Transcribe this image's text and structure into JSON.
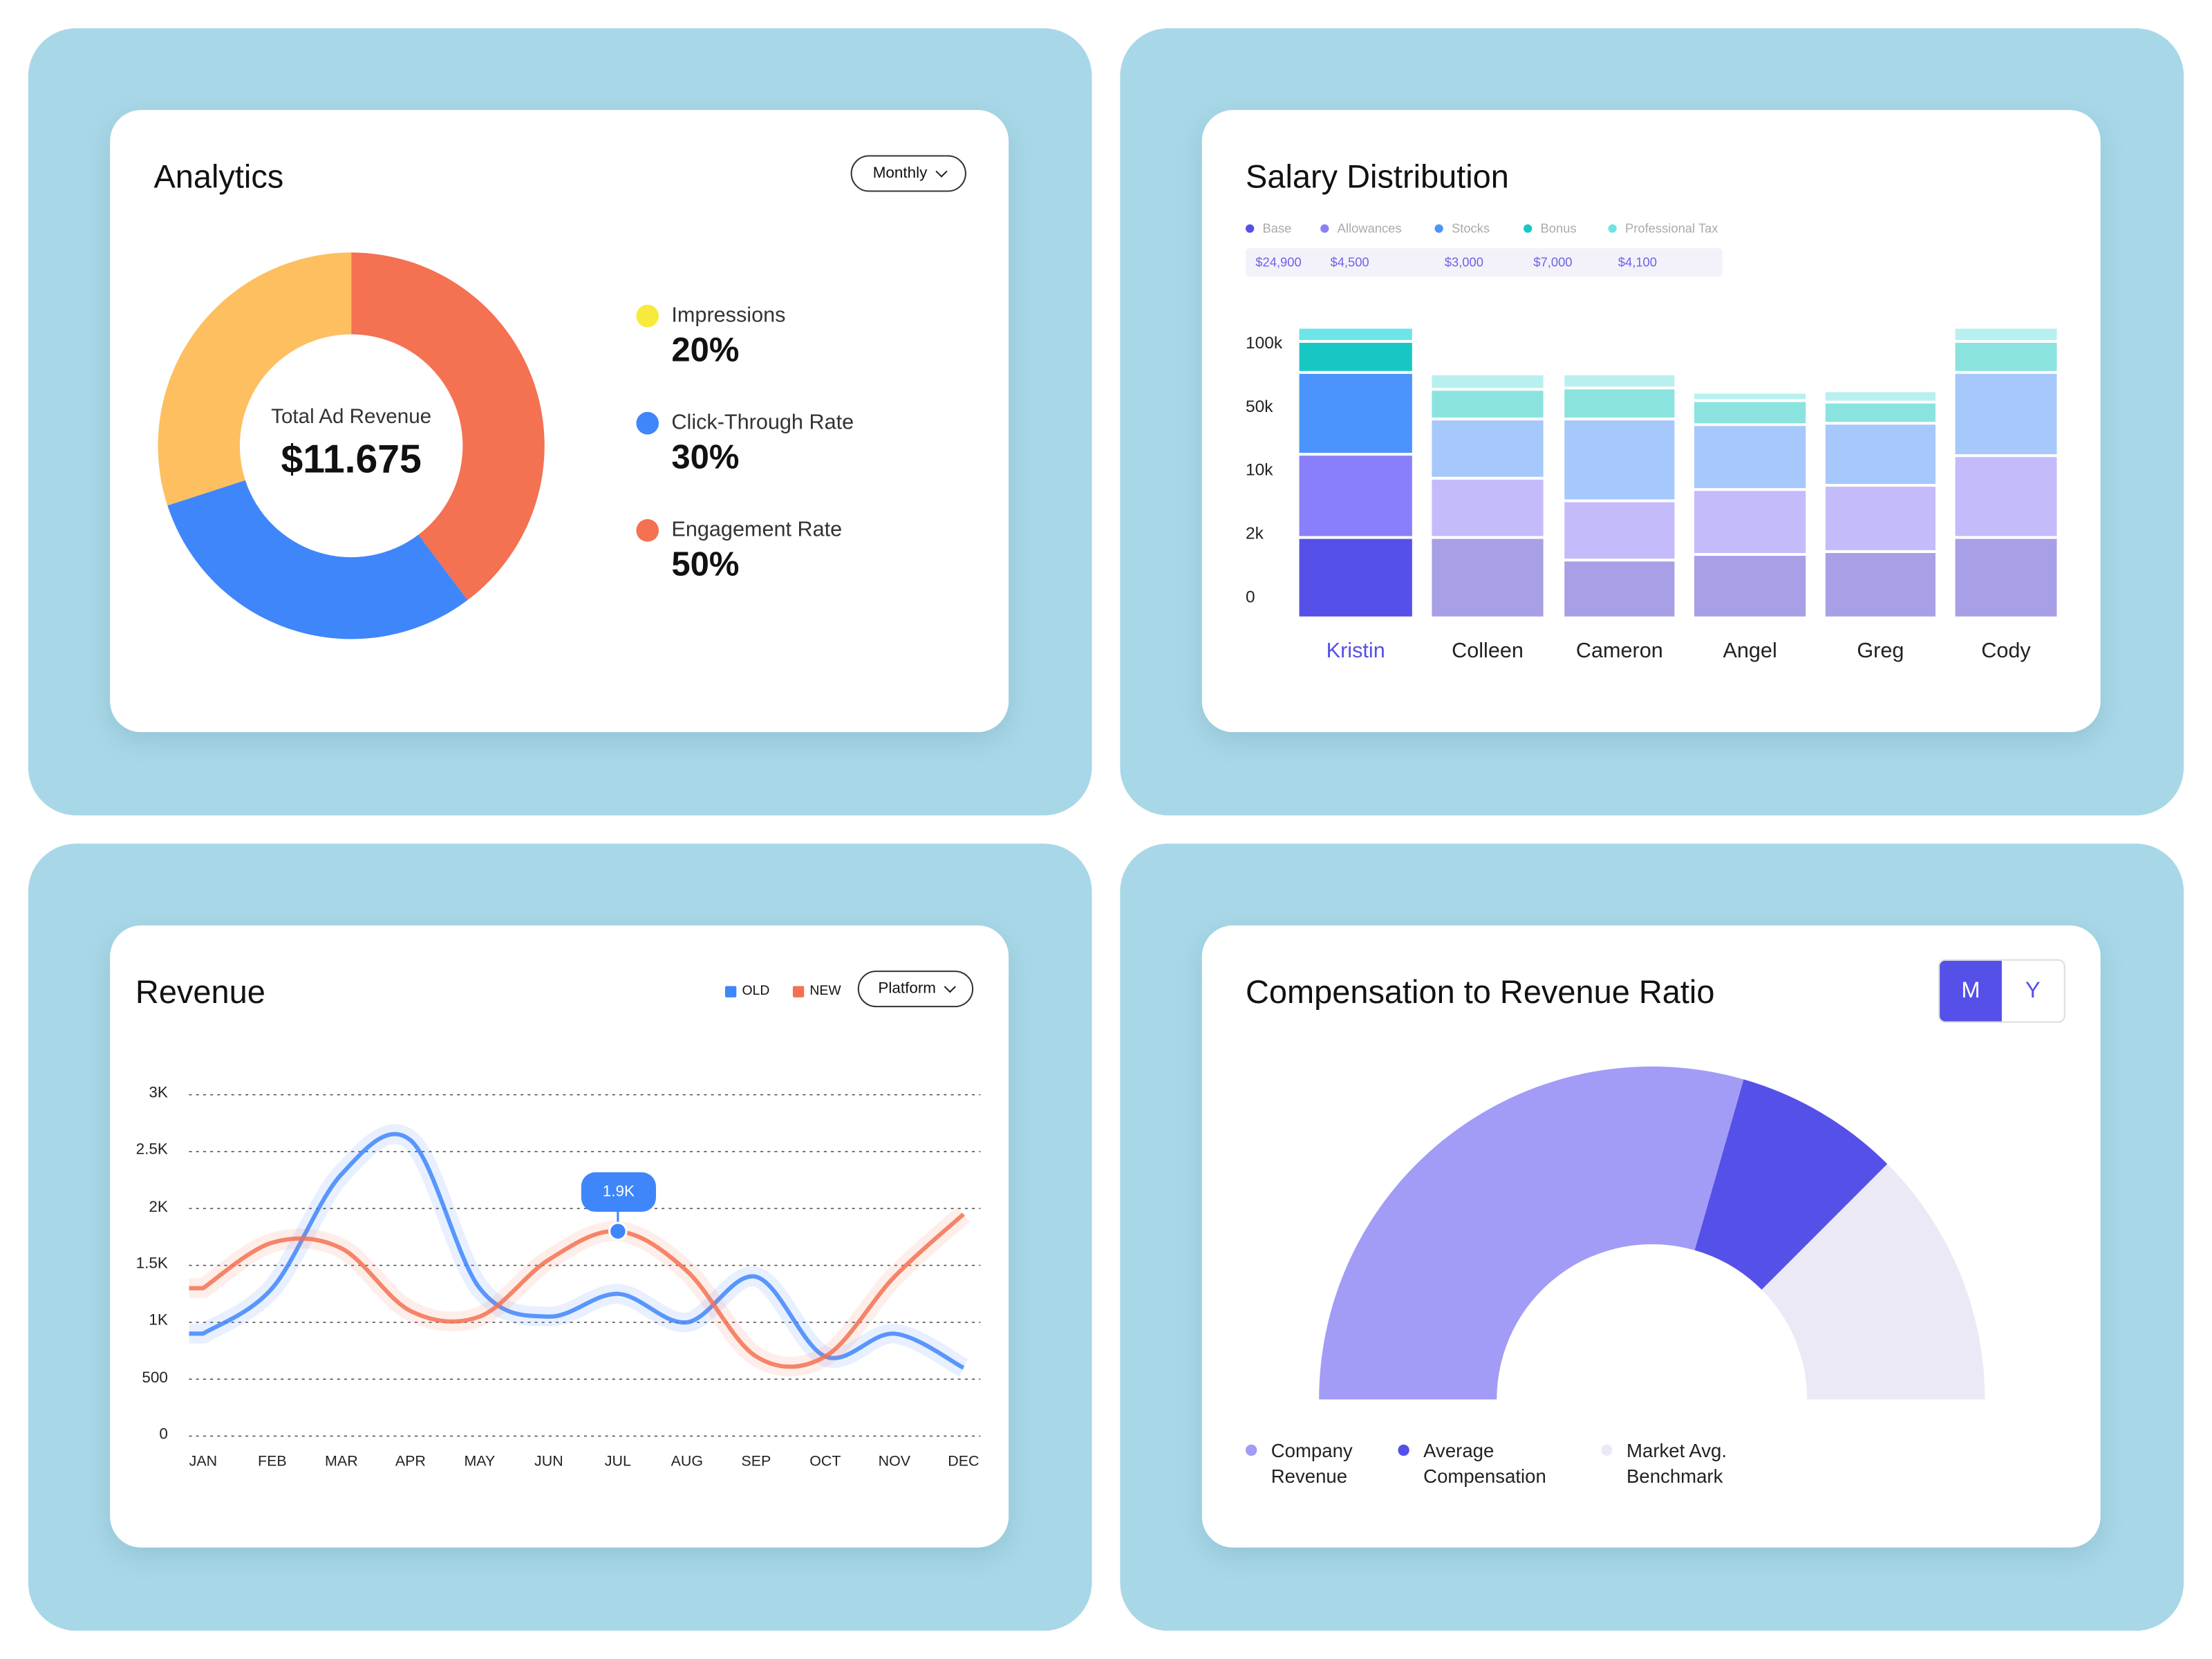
{
  "analytics": {
    "title": "Analytics",
    "period_dropdown": "Monthly",
    "center_label": "Total Ad Revenue",
    "center_value": "$11.675",
    "legend": [
      {
        "label": "Impressions",
        "value": "20%",
        "color": "#f7ea3c"
      },
      {
        "label": "Click-Through Rate",
        "value": "30%",
        "color": "#3f86fb"
      },
      {
        "label": "Engagement Rate",
        "value": "50%",
        "color": "#f47151"
      }
    ],
    "slice_colors": {
      "orange": "#f47151",
      "blue": "#3f86fb",
      "yellow": "#fdbf5f"
    }
  },
  "salary": {
    "title": "Salary Distribution",
    "legend": [
      {
        "label": "Base",
        "value": "$24,900",
        "color": "#5550e8"
      },
      {
        "label": "Allowances",
        "value": "$4,500",
        "color": "#8a7ffb"
      },
      {
        "label": "Stocks",
        "value": "$3,000",
        "color": "#4a94fb"
      },
      {
        "label": "Bonus",
        "value": "$7,000",
        "color": "#18c7c4"
      },
      {
        "label": "Professional Tax",
        "value": "$4,100",
        "color": "#6de4e8"
      }
    ],
    "y_ticks": [
      "100k",
      "50k",
      "10k",
      "2k",
      "0"
    ]
  },
  "revenue": {
    "title": "Revenue",
    "legend_old": "OLD",
    "legend_new": "NEW",
    "dropdown": "Platform",
    "tooltip": "1.9K"
  },
  "ratio": {
    "title": "Compensation to Revenue Ratio",
    "toggle_m": "M",
    "toggle_y": "Y",
    "legend": [
      {
        "label1": "Company",
        "label2": "Revenue",
        "color": "#a29cf6"
      },
      {
        "label1": "Average",
        "label2": "Compensation",
        "color": "#5550e8"
      },
      {
        "label1": "Market Avg.",
        "label2": "Benchmark",
        "color": "#ece9f7"
      }
    ]
  },
  "chart_data": [
    {
      "type": "pie",
      "title": "Analytics",
      "categories": [
        "Impressions",
        "Click-Through Rate",
        "Engagement Rate"
      ],
      "values": [
        20,
        30,
        50
      ]
    },
    {
      "type": "bar",
      "title": "Salary Distribution",
      "stacked": true,
      "categories": [
        "Kristin",
        "Colleen",
        "Cameron",
        "Angel",
        "Greg",
        "Cody"
      ],
      "highlighted": "Kristin",
      "y_ticks": [
        "0",
        "2k",
        "10k",
        "50k",
        "100k"
      ],
      "note": "segment values in axis-tick units",
      "series": [
        {
          "name": "Base",
          "values": [
            1.27,
            1.27,
            0.91,
            1.0,
            1.04,
            1.27
          ]
        },
        {
          "name": "Allowances",
          "values": [
            1.31,
            0.93,
            0.93,
            1.02,
            1.04,
            1.29
          ]
        },
        {
          "name": "Stocks",
          "values": [
            1.29,
            0.93,
            1.29,
            1.02,
            0.98,
            1.31
          ]
        },
        {
          "name": "Bonus",
          "values": [
            0.49,
            0.47,
            0.49,
            0.38,
            0.33,
            0.49
          ]
        },
        {
          "name": "Professional Tax",
          "values": [
            0.22,
            0.24,
            0.22,
            0.13,
            0.18,
            0.22
          ]
        }
      ]
    },
    {
      "type": "line",
      "title": "Revenue",
      "categories": [
        "JAN",
        "FEB",
        "MAR",
        "APR",
        "MAY",
        "JUN",
        "JUL",
        "AUG",
        "SEP",
        "OCT",
        "NOV",
        "DEC"
      ],
      "y_ticks": [
        "0",
        "500",
        "1K",
        "1.5K",
        "2K",
        "2.5K",
        "3K"
      ],
      "ylim": [
        0,
        3000
      ],
      "series": [
        {
          "name": "OLD",
          "color": "#3f86fb",
          "values": [
            900,
            1300,
            2300,
            2600,
            1300,
            1050,
            1250,
            1000,
            1400,
            700,
            900,
            600
          ]
        },
        {
          "name": "NEW",
          "color": "#f47151",
          "values": [
            1300,
            1700,
            1650,
            1100,
            1050,
            1550,
            1800,
            1450,
            700,
            700,
            1400,
            1950
          ]
        }
      ]
    },
    {
      "type": "pie",
      "title": "Compensation to Revenue Ratio",
      "shape": "semicircle",
      "categories": [
        "Company Revenue",
        "Average Compensation",
        "Market Avg. Benchmark"
      ],
      "values": [
        59,
        16,
        25
      ]
    }
  ]
}
